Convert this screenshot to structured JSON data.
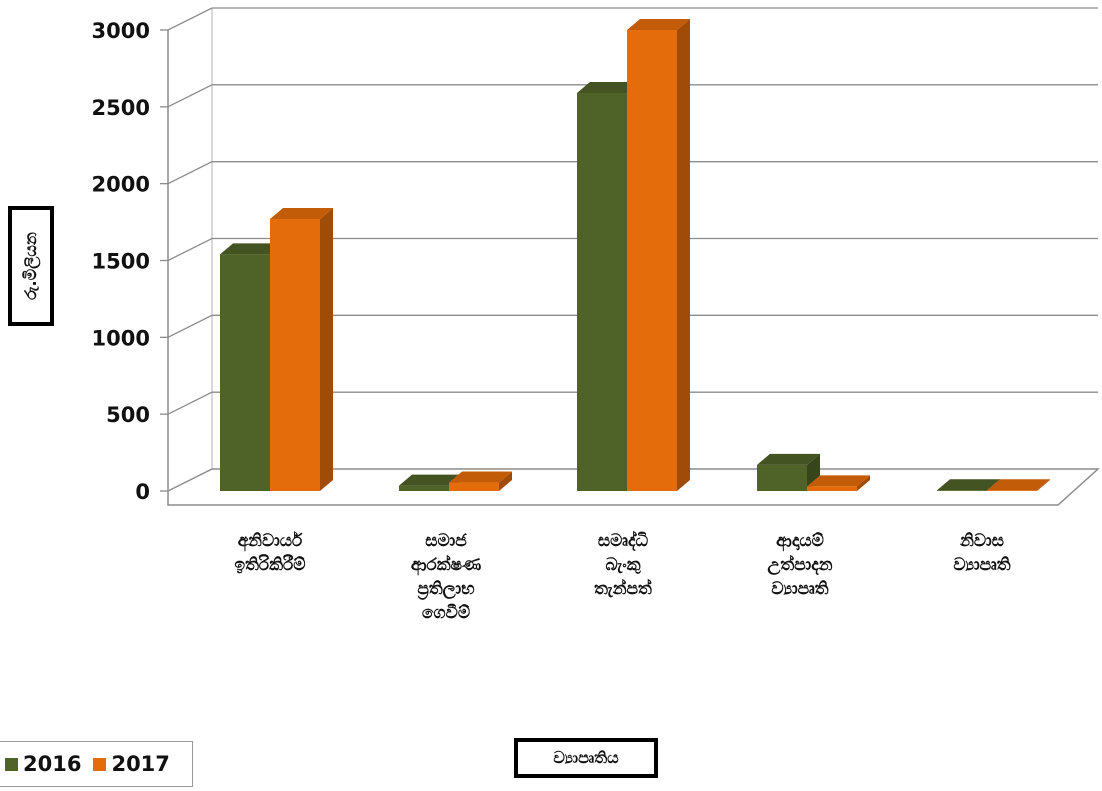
{
  "chart_data": {
    "type": "bar",
    "categories": [
      [
        "අනිවාර්ය",
        "ඉතිරිකිරීම්"
      ],
      [
        "සමාජ",
        "ආරක්ෂණ",
        "ප්‍රතිලාභ",
        "ගෙවීම්"
      ],
      [
        "සමෘද්ධි",
        "බැංකු",
        "තැන්පත්"
      ],
      [
        "ආදායම්",
        "උත්පාදන",
        "ව්‍යාපෘති"
      ],
      [
        "නිවාස",
        "ව්‍යාපෘති"
      ]
    ],
    "series": [
      {
        "name": "2016",
        "values": [
          1540,
          35,
          2590,
          170,
          5
        ]
      },
      {
        "name": "2017",
        "values": [
          1770,
          55,
          3000,
          30,
          5
        ]
      }
    ],
    "xlabel": "ව්‍යාපෘතිය",
    "ylabel": "රු.මිලියන",
    "ylim": [
      0,
      3000
    ],
    "yticks": [
      0,
      500,
      1000,
      1500,
      2000,
      2500,
      3000
    ],
    "grid": true,
    "legend": "bottom-left",
    "colors": {
      "2016": "#4f6228",
      "2017": "#e46c0a"
    }
  }
}
